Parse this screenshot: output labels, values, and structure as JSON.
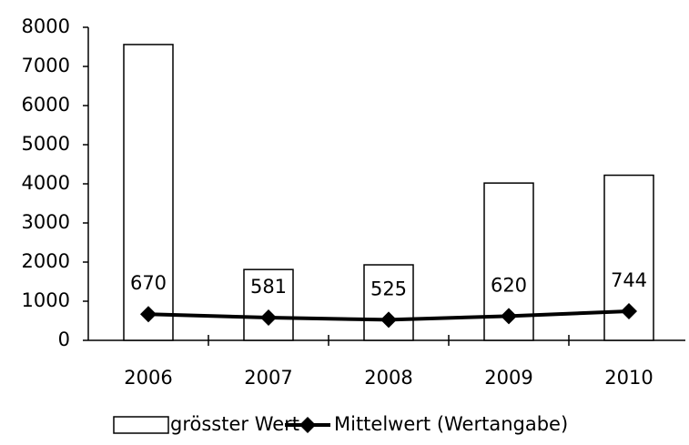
{
  "chart_data": {
    "type": "combo",
    "categories": [
      "2006",
      "2007",
      "2008",
      "2009",
      "2010"
    ],
    "series": [
      {
        "name": "grösster Wert",
        "type": "bar",
        "color": "#ffffff",
        "values": [
          7560,
          1810,
          1930,
          4020,
          4220
        ]
      },
      {
        "name": "Mittelwert (Wertangabe)",
        "type": "line",
        "color": "#000000",
        "values": [
          670,
          581,
          525,
          620,
          744
        ],
        "data_labels": true
      }
    ],
    "ylim": [
      0,
      8000
    ],
    "yticks": [
      0,
      1000,
      2000,
      3000,
      4000,
      5000,
      6000,
      7000,
      8000
    ],
    "grid": false,
    "legend": "bottom"
  }
}
